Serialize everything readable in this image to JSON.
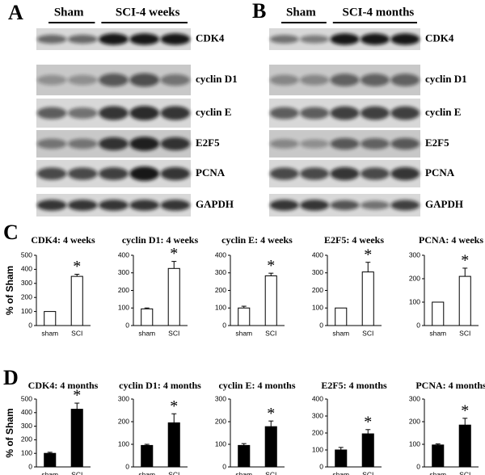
{
  "blots": [
    {
      "letter": "A",
      "groups": [
        "Sham",
        "SCI-4 weeks"
      ],
      "proteins": [
        "CDK4",
        "cyclin D1",
        "cyclin E",
        "E2F5",
        "PCNA",
        "GAPDH"
      ]
    },
    {
      "letter": "B",
      "groups": [
        "Sham",
        "SCI-4 months"
      ],
      "proteins": [
        "CDK4",
        "cyclin D1",
        "cyclin E",
        "E2F5",
        "PCNA",
        "GAPDH"
      ]
    }
  ],
  "row_letters": [
    "C",
    "D"
  ],
  "chart_data": [
    {
      "type": "bar",
      "title": "CDK4: 4 weeks",
      "ylabel": "% of Sham",
      "categories": [
        "sham",
        "SCI"
      ],
      "values": [
        100,
        350
      ],
      "errors": [
        0,
        15
      ],
      "annotation": "*",
      "color": "#ffffff",
      "ylim": [
        0,
        500
      ],
      "yticks": [
        0,
        100,
        200,
        300,
        400,
        500
      ]
    },
    {
      "type": "bar",
      "title": "cyclin D1: 4 weeks",
      "categories": [
        "sham",
        "SCI"
      ],
      "values": [
        95,
        325
      ],
      "errors": [
        5,
        40
      ],
      "annotation": "*",
      "color": "#ffffff",
      "ylim": [
        0,
        400
      ],
      "yticks": [
        0,
        100,
        200,
        300,
        400
      ]
    },
    {
      "type": "bar",
      "title": "cyclin E: 4 weeks",
      "categories": [
        "sham",
        "SCI"
      ],
      "values": [
        100,
        283
      ],
      "errors": [
        10,
        15
      ],
      "annotation": "*",
      "color": "#ffffff",
      "ylim": [
        0,
        400
      ],
      "yticks": [
        0,
        100,
        200,
        300,
        400
      ]
    },
    {
      "type": "bar",
      "title": "E2F5: 4 weeks",
      "categories": [
        "sham",
        "SCI"
      ],
      "values": [
        100,
        305
      ],
      "errors": [
        0,
        55
      ],
      "annotation": "*",
      "color": "#ffffff",
      "ylim": [
        0,
        400
      ],
      "yticks": [
        0,
        100,
        200,
        300,
        400
      ]
    },
    {
      "type": "bar",
      "title": "PCNA: 4 weeks",
      "categories": [
        "sham",
        "SCI"
      ],
      "values": [
        100,
        210
      ],
      "errors": [
        0,
        35
      ],
      "annotation": "*",
      "color": "#ffffff",
      "ylim": [
        0,
        300
      ],
      "yticks": [
        0,
        100,
        200,
        300
      ]
    },
    {
      "type": "bar",
      "title": "CDK4: 4 months",
      "ylabel": "% of Sham",
      "categories": [
        "sham",
        "SCI"
      ],
      "values": [
        100,
        425
      ],
      "errors": [
        8,
        45
      ],
      "annotation": "*",
      "color": "#000000",
      "ylim": [
        0,
        500
      ],
      "yticks": [
        0,
        100,
        200,
        300,
        400,
        500
      ]
    },
    {
      "type": "bar",
      "title": "cyclin D1: 4 months",
      "categories": [
        "sham",
        "SCI"
      ],
      "values": [
        95,
        195
      ],
      "errors": [
        5,
        40
      ],
      "annotation": "*",
      "color": "#000000",
      "ylim": [
        0,
        300
      ],
      "yticks": [
        0,
        100,
        200,
        300
      ]
    },
    {
      "type": "bar",
      "title": "cyclin E: 4 months",
      "categories": [
        "sham",
        "SCI"
      ],
      "values": [
        95,
        178
      ],
      "errors": [
        8,
        25
      ],
      "annotation": "*",
      "color": "#000000",
      "ylim": [
        0,
        300
      ],
      "yticks": [
        0,
        100,
        200,
        300
      ]
    },
    {
      "type": "bar",
      "title": "E2F5: 4 months",
      "categories": [
        "sham",
        "SCI"
      ],
      "values": [
        100,
        195
      ],
      "errors": [
        15,
        25
      ],
      "annotation": "*",
      "color": "#000000",
      "ylim": [
        0,
        400
      ],
      "yticks": [
        0,
        100,
        200,
        300,
        400
      ]
    },
    {
      "type": "bar",
      "title": "PCNA: 4 months",
      "categories": [
        "sham",
        "SCI"
      ],
      "values": [
        97,
        185
      ],
      "errors": [
        5,
        30
      ],
      "annotation": "*",
      "color": "#000000",
      "ylim": [
        0,
        300
      ],
      "yticks": [
        0,
        100,
        200,
        300
      ]
    }
  ]
}
